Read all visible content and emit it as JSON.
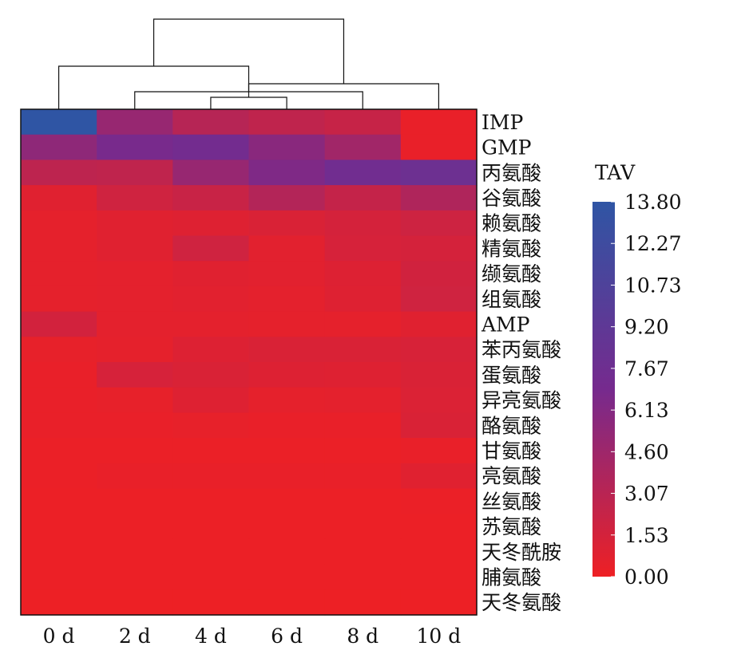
{
  "chart_data": {
    "type": "heatmap",
    "title": "",
    "xlabel": "",
    "ylabel": "",
    "columns": [
      "0 d",
      "2 d",
      "4 d",
      "6 d",
      "8 d",
      "10 d"
    ],
    "rows": [
      "IMP",
      "GMP",
      "丙氨酸",
      "谷氨酸",
      "赖氨酸",
      "精氨酸",
      "缬氨酸",
      "组氨酸",
      "AMP",
      "苯丙氨酸",
      "蛋氨酸",
      "异亮氨酸",
      "酪氨酸",
      "甘氨酸",
      "亮氨酸",
      "丝氨酸",
      "苏氨酸",
      "天冬酰胺",
      "脯氨酸",
      "天冬氨酸"
    ],
    "values": [
      [
        13.8,
        5.0,
        3.2,
        2.7,
        2.3,
        0.3
      ],
      [
        5.5,
        6.8,
        7.2,
        5.8,
        4.4,
        0.3
      ],
      [
        2.8,
        2.7,
        5.0,
        6.4,
        7.4,
        7.8
      ],
      [
        0.8,
        1.8,
        2.2,
        3.4,
        2.4,
        3.6
      ],
      [
        0.5,
        0.8,
        0.9,
        1.2,
        1.5,
        1.9
      ],
      [
        0.5,
        0.8,
        1.8,
        0.7,
        1.4,
        1.5
      ],
      [
        0.5,
        0.6,
        0.8,
        0.7,
        1.0,
        1.7
      ],
      [
        0.5,
        0.6,
        0.7,
        0.6,
        0.9,
        1.8
      ],
      [
        1.6,
        0.6,
        0.6,
        0.5,
        0.5,
        0.8
      ],
      [
        0.4,
        0.5,
        1.0,
        1.2,
        1.2,
        1.3
      ],
      [
        0.3,
        1.4,
        1.2,
        1.0,
        0.9,
        1.2
      ],
      [
        0.3,
        0.4,
        0.9,
        0.5,
        0.6,
        1.1
      ],
      [
        0.3,
        0.3,
        0.4,
        0.3,
        0.3,
        1.2
      ],
      [
        0.2,
        0.2,
        0.2,
        0.2,
        0.2,
        0.3
      ],
      [
        0.2,
        0.3,
        0.3,
        0.3,
        0.3,
        0.8
      ],
      [
        0.1,
        0.1,
        0.1,
        0.1,
        0.1,
        0.2
      ],
      [
        0.1,
        0.1,
        0.1,
        0.1,
        0.1,
        0.1
      ],
      [
        0.1,
        0.1,
        0.1,
        0.1,
        0.1,
        0.1
      ],
      [
        0.1,
        0.1,
        0.1,
        0.1,
        0.1,
        0.1
      ],
      [
        0.05,
        0.05,
        0.05,
        0.05,
        0.05,
        0.05
      ]
    ],
    "colorbar": {
      "title": "TAV",
      "ticks": [
        "13.80",
        "12.27",
        "10.73",
        "9.20",
        "7.67",
        "6.13",
        "4.60",
        "3.07",
        "1.53",
        "0.00"
      ],
      "range": [
        0.0,
        13.8
      ],
      "color_low": "#ee2024",
      "color_mid": "#762a8e",
      "color_high": "#2f55a4"
    },
    "dendrogram": {
      "side": "top",
      "merges": [
        [
          2,
          3
        ],
        [
          1,
          4
        ],
        [
          6,
          5
        ],
        [
          7,
          0
        ],
        [
          8,
          9
        ]
      ]
    }
  }
}
